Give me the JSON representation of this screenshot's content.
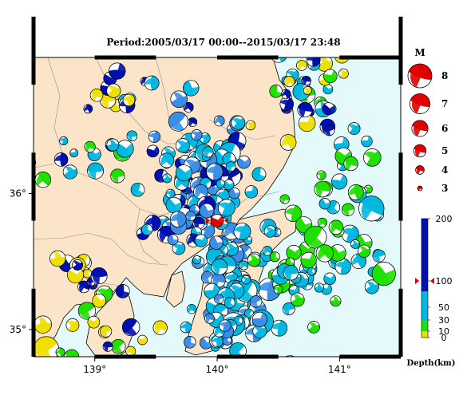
{
  "title": "Period:2005/03/17 00:00--2015/03/17 23:48",
  "map": {
    "lon_range": [
      138.5,
      141.5
    ],
    "lat_range": [
      34.8,
      37.0
    ],
    "x_ticks": [
      {
        "value": 139,
        "label": "139°"
      },
      {
        "value": 140,
        "label": "140°"
      },
      {
        "value": 141,
        "label": "141°"
      }
    ],
    "y_ticks": [
      {
        "value": 36,
        "label": "36°"
      },
      {
        "value": 35,
        "label": "35°"
      }
    ],
    "colors": {
      "land": "#fce4c8",
      "sea": "#e4fafa",
      "border": "#808080",
      "coast": "#000000"
    },
    "main_shock": {
      "lon": 140.0,
      "lat": 35.8,
      "color": "#e00000"
    }
  },
  "magnitude_legend": {
    "title": "M",
    "entries": [
      {
        "label": "8",
        "value": 8
      },
      {
        "label": "7",
        "value": 7
      },
      {
        "label": "6",
        "value": 6
      },
      {
        "label": "5",
        "value": 5
      },
      {
        "label": "4",
        "value": 4
      },
      {
        "label": "3",
        "value": 3
      }
    ],
    "color": "#e00000"
  },
  "depth_legend": {
    "title": "Depth(km)",
    "ticks": [
      {
        "label": "200",
        "value": 200
      },
      {
        "label": "100",
        "value": 100
      },
      {
        "label": "50",
        "value": 50
      },
      {
        "label": "30",
        "value": 30
      },
      {
        "label": "10",
        "value": 10
      },
      {
        "label": "0",
        "value": 0
      }
    ],
    "marker_value": 100,
    "colors": [
      {
        "from": 0,
        "to": 10,
        "color": "#f0e000"
      },
      {
        "from": 10,
        "to": 30,
        "color": "#20e000"
      },
      {
        "from": 30,
        "to": 80,
        "color": "#00b8e0"
      },
      {
        "from": 80,
        "to": 200,
        "color": "#0010b0"
      }
    ]
  },
  "events": {
    "clusters": [
      {
        "lon": 139.9,
        "lat": 36.15,
        "sd_lon": 0.18,
        "sd_lat": 0.25,
        "count": 90,
        "palette": [
          "#00b8e0",
          "#00b8e0",
          "#3a8ee8",
          "#0010b0"
        ]
      },
      {
        "lon": 140.15,
        "lat": 35.55,
        "sd_lon": 0.16,
        "sd_lat": 0.2,
        "count": 55,
        "palette": [
          "#00b8e0",
          "#3a8ee8",
          "#00b8e0"
        ]
      },
      {
        "lon": 140.1,
        "lat": 35.05,
        "sd_lon": 0.22,
        "sd_lat": 0.12,
        "count": 45,
        "palette": [
          "#3a8ee8",
          "#00b8e0"
        ]
      },
      {
        "lon": 140.75,
        "lat": 36.7,
        "sd_lon": 0.18,
        "sd_lat": 0.22,
        "count": 40,
        "palette": [
          "#00b8e0",
          "#20e000",
          "#f0e000",
          "#0010b0"
        ]
      },
      {
        "lon": 141.0,
        "lat": 36.0,
        "sd_lon": 0.2,
        "sd_lat": 0.2,
        "count": 28,
        "palette": [
          "#20e000",
          "#00b8e0"
        ]
      },
      {
        "lon": 140.95,
        "lat": 35.5,
        "sd_lon": 0.28,
        "sd_lat": 0.12,
        "count": 28,
        "palette": [
          "#00b8e0",
          "#20e000"
        ]
      },
      {
        "lon": 140.55,
        "lat": 35.4,
        "sd_lon": 0.15,
        "sd_lat": 0.1,
        "count": 20,
        "palette": [
          "#20e000",
          "#00b8e0"
        ]
      },
      {
        "lon": 138.95,
        "lat": 35.35,
        "sd_lon": 0.16,
        "sd_lat": 0.16,
        "count": 18,
        "palette": [
          "#20e000",
          "#f0e000",
          "#0010b0"
        ]
      },
      {
        "lon": 139.2,
        "lat": 36.75,
        "sd_lon": 0.18,
        "sd_lat": 0.08,
        "count": 14,
        "palette": [
          "#f0e000",
          "#00b8e0",
          "#0010b0"
        ]
      },
      {
        "lon": 138.95,
        "lat": 36.3,
        "sd_lon": 0.22,
        "sd_lat": 0.12,
        "count": 16,
        "palette": [
          "#0010b0",
          "#20e000",
          "#00b8e0"
        ]
      },
      {
        "lon": 139.1,
        "lat": 34.95,
        "sd_lon": 0.2,
        "sd_lat": 0.08,
        "count": 14,
        "palette": [
          "#20e000",
          "#f0e000",
          "#0010b0"
        ]
      },
      {
        "lon": 139.6,
        "lat": 35.8,
        "sd_lon": 0.2,
        "sd_lat": 0.15,
        "count": 22,
        "palette": [
          "#00b8e0",
          "#0010b0",
          "#3a8ee8"
        ]
      }
    ]
  }
}
